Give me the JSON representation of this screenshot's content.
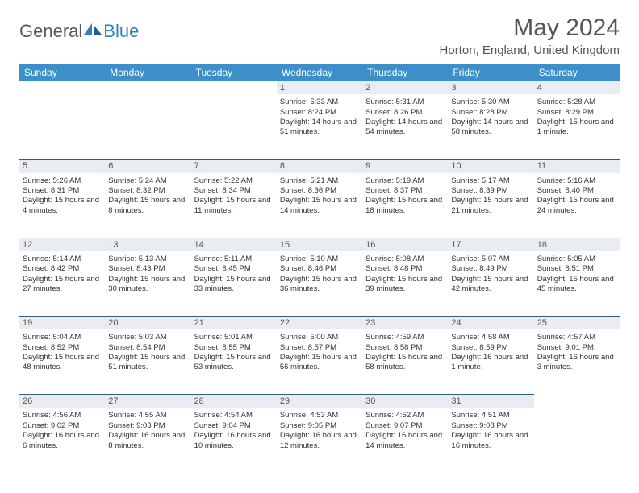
{
  "brand": {
    "part1": "General",
    "part2": "Blue"
  },
  "title": "May 2024",
  "location": "Horton, England, United Kingdom",
  "colors": {
    "header_bg": "#3d8fc9",
    "daynum_bg": "#e9edf1",
    "daynum_border": "#2f5f84",
    "logo_gray": "#5a5a5a",
    "logo_blue": "#2f7fc2"
  },
  "dayNames": [
    "Sunday",
    "Monday",
    "Tuesday",
    "Wednesday",
    "Thursday",
    "Friday",
    "Saturday"
  ],
  "weeks": [
    [
      null,
      null,
      null,
      {
        "n": "1",
        "sr": "5:33 AM",
        "ss": "8:24 PM",
        "dl": "14 hours and 51 minutes."
      },
      {
        "n": "2",
        "sr": "5:31 AM",
        "ss": "8:26 PM",
        "dl": "14 hours and 54 minutes."
      },
      {
        "n": "3",
        "sr": "5:30 AM",
        "ss": "8:28 PM",
        "dl": "14 hours and 58 minutes."
      },
      {
        "n": "4",
        "sr": "5:28 AM",
        "ss": "8:29 PM",
        "dl": "15 hours and 1 minute."
      }
    ],
    [
      {
        "n": "5",
        "sr": "5:26 AM",
        "ss": "8:31 PM",
        "dl": "15 hours and 4 minutes."
      },
      {
        "n": "6",
        "sr": "5:24 AM",
        "ss": "8:32 PM",
        "dl": "15 hours and 8 minutes."
      },
      {
        "n": "7",
        "sr": "5:22 AM",
        "ss": "8:34 PM",
        "dl": "15 hours and 11 minutes."
      },
      {
        "n": "8",
        "sr": "5:21 AM",
        "ss": "8:36 PM",
        "dl": "15 hours and 14 minutes."
      },
      {
        "n": "9",
        "sr": "5:19 AM",
        "ss": "8:37 PM",
        "dl": "15 hours and 18 minutes."
      },
      {
        "n": "10",
        "sr": "5:17 AM",
        "ss": "8:39 PM",
        "dl": "15 hours and 21 minutes."
      },
      {
        "n": "11",
        "sr": "5:16 AM",
        "ss": "8:40 PM",
        "dl": "15 hours and 24 minutes."
      }
    ],
    [
      {
        "n": "12",
        "sr": "5:14 AM",
        "ss": "8:42 PM",
        "dl": "15 hours and 27 minutes."
      },
      {
        "n": "13",
        "sr": "5:13 AM",
        "ss": "8:43 PM",
        "dl": "15 hours and 30 minutes."
      },
      {
        "n": "14",
        "sr": "5:11 AM",
        "ss": "8:45 PM",
        "dl": "15 hours and 33 minutes."
      },
      {
        "n": "15",
        "sr": "5:10 AM",
        "ss": "8:46 PM",
        "dl": "15 hours and 36 minutes."
      },
      {
        "n": "16",
        "sr": "5:08 AM",
        "ss": "8:48 PM",
        "dl": "15 hours and 39 minutes."
      },
      {
        "n": "17",
        "sr": "5:07 AM",
        "ss": "8:49 PM",
        "dl": "15 hours and 42 minutes."
      },
      {
        "n": "18",
        "sr": "5:05 AM",
        "ss": "8:51 PM",
        "dl": "15 hours and 45 minutes."
      }
    ],
    [
      {
        "n": "19",
        "sr": "5:04 AM",
        "ss": "8:52 PM",
        "dl": "15 hours and 48 minutes."
      },
      {
        "n": "20",
        "sr": "5:03 AM",
        "ss": "8:54 PM",
        "dl": "15 hours and 51 minutes."
      },
      {
        "n": "21",
        "sr": "5:01 AM",
        "ss": "8:55 PM",
        "dl": "15 hours and 53 minutes."
      },
      {
        "n": "22",
        "sr": "5:00 AM",
        "ss": "8:57 PM",
        "dl": "15 hours and 56 minutes."
      },
      {
        "n": "23",
        "sr": "4:59 AM",
        "ss": "8:58 PM",
        "dl": "15 hours and 58 minutes."
      },
      {
        "n": "24",
        "sr": "4:58 AM",
        "ss": "8:59 PM",
        "dl": "16 hours and 1 minute."
      },
      {
        "n": "25",
        "sr": "4:57 AM",
        "ss": "9:01 PM",
        "dl": "16 hours and 3 minutes."
      }
    ],
    [
      {
        "n": "26",
        "sr": "4:56 AM",
        "ss": "9:02 PM",
        "dl": "16 hours and 6 minutes."
      },
      {
        "n": "27",
        "sr": "4:55 AM",
        "ss": "9:03 PM",
        "dl": "16 hours and 8 minutes."
      },
      {
        "n": "28",
        "sr": "4:54 AM",
        "ss": "9:04 PM",
        "dl": "16 hours and 10 minutes."
      },
      {
        "n": "29",
        "sr": "4:53 AM",
        "ss": "9:05 PM",
        "dl": "16 hours and 12 minutes."
      },
      {
        "n": "30",
        "sr": "4:52 AM",
        "ss": "9:07 PM",
        "dl": "16 hours and 14 minutes."
      },
      {
        "n": "31",
        "sr": "4:51 AM",
        "ss": "9:08 PM",
        "dl": "16 hours and 16 minutes."
      },
      null
    ]
  ],
  "labels": {
    "sunrise": "Sunrise:",
    "sunset": "Sunset:",
    "daylight": "Daylight:"
  }
}
